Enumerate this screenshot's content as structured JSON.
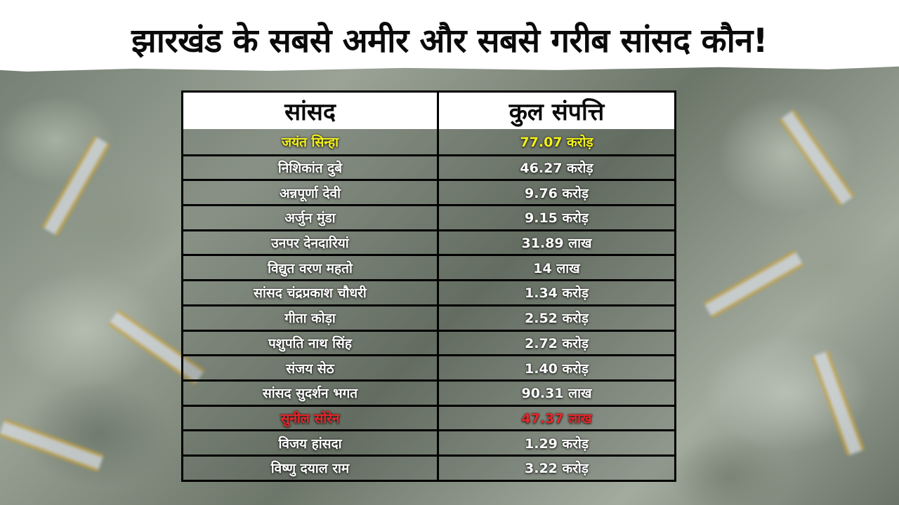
{
  "title": "झारखंड के सबसे अमीर और सबसे गरीब सांसद कौन!",
  "colors": {
    "title_text": "#0a0a0a",
    "title_background": "#ffffff",
    "richest_highlight": "#f3f01c",
    "poorest_highlight": "#e8262a",
    "row_text": "#ffffff",
    "table_border": "#000000"
  },
  "table": {
    "headers": [
      "सांसद",
      "कुल संपत्ति"
    ],
    "rows": [
      {
        "name": "जयंत सिन्हा",
        "assets": "77.07 करोड़",
        "highlight": "yellow"
      },
      {
        "name": "निशिकांत दुबे",
        "assets": "46.27 करोड़",
        "highlight": ""
      },
      {
        "name": "अन्नपूर्णा देवी",
        "assets": "9.76 करोड़",
        "highlight": ""
      },
      {
        "name": "अर्जुन मुंडा",
        "assets": "9.15 करोड़",
        "highlight": ""
      },
      {
        "name": "उनपर देनदारियां",
        "assets": "31.89 लाख",
        "highlight": ""
      },
      {
        "name": "विद्युत वरण महतो",
        "assets": "14 लाख",
        "highlight": ""
      },
      {
        "name": "सांसद चंद्रप्रकाश चौधरी",
        "assets": "1.34 करोड़",
        "highlight": ""
      },
      {
        "name": "गीता कोड़ा",
        "assets": "2.52 करोड़",
        "highlight": ""
      },
      {
        "name": "पशुपति नाथ सिंह",
        "assets": "2.72 करोड़",
        "highlight": ""
      },
      {
        "name": "संजय सेठ",
        "assets": "1.40 करोड़",
        "highlight": ""
      },
      {
        "name": "सांसद सुदर्शन भगत",
        "assets": "90.31 लाख",
        "highlight": ""
      },
      {
        "name": "सुनील सोरेन",
        "assets": "47.37 लाख",
        "highlight": "red"
      },
      {
        "name": "विजय हांसदा",
        "assets": "1.29 करोड़",
        "highlight": ""
      },
      {
        "name": "विष्णु दयाल राम",
        "assets": "3.22 करोड़",
        "highlight": ""
      }
    ]
  }
}
